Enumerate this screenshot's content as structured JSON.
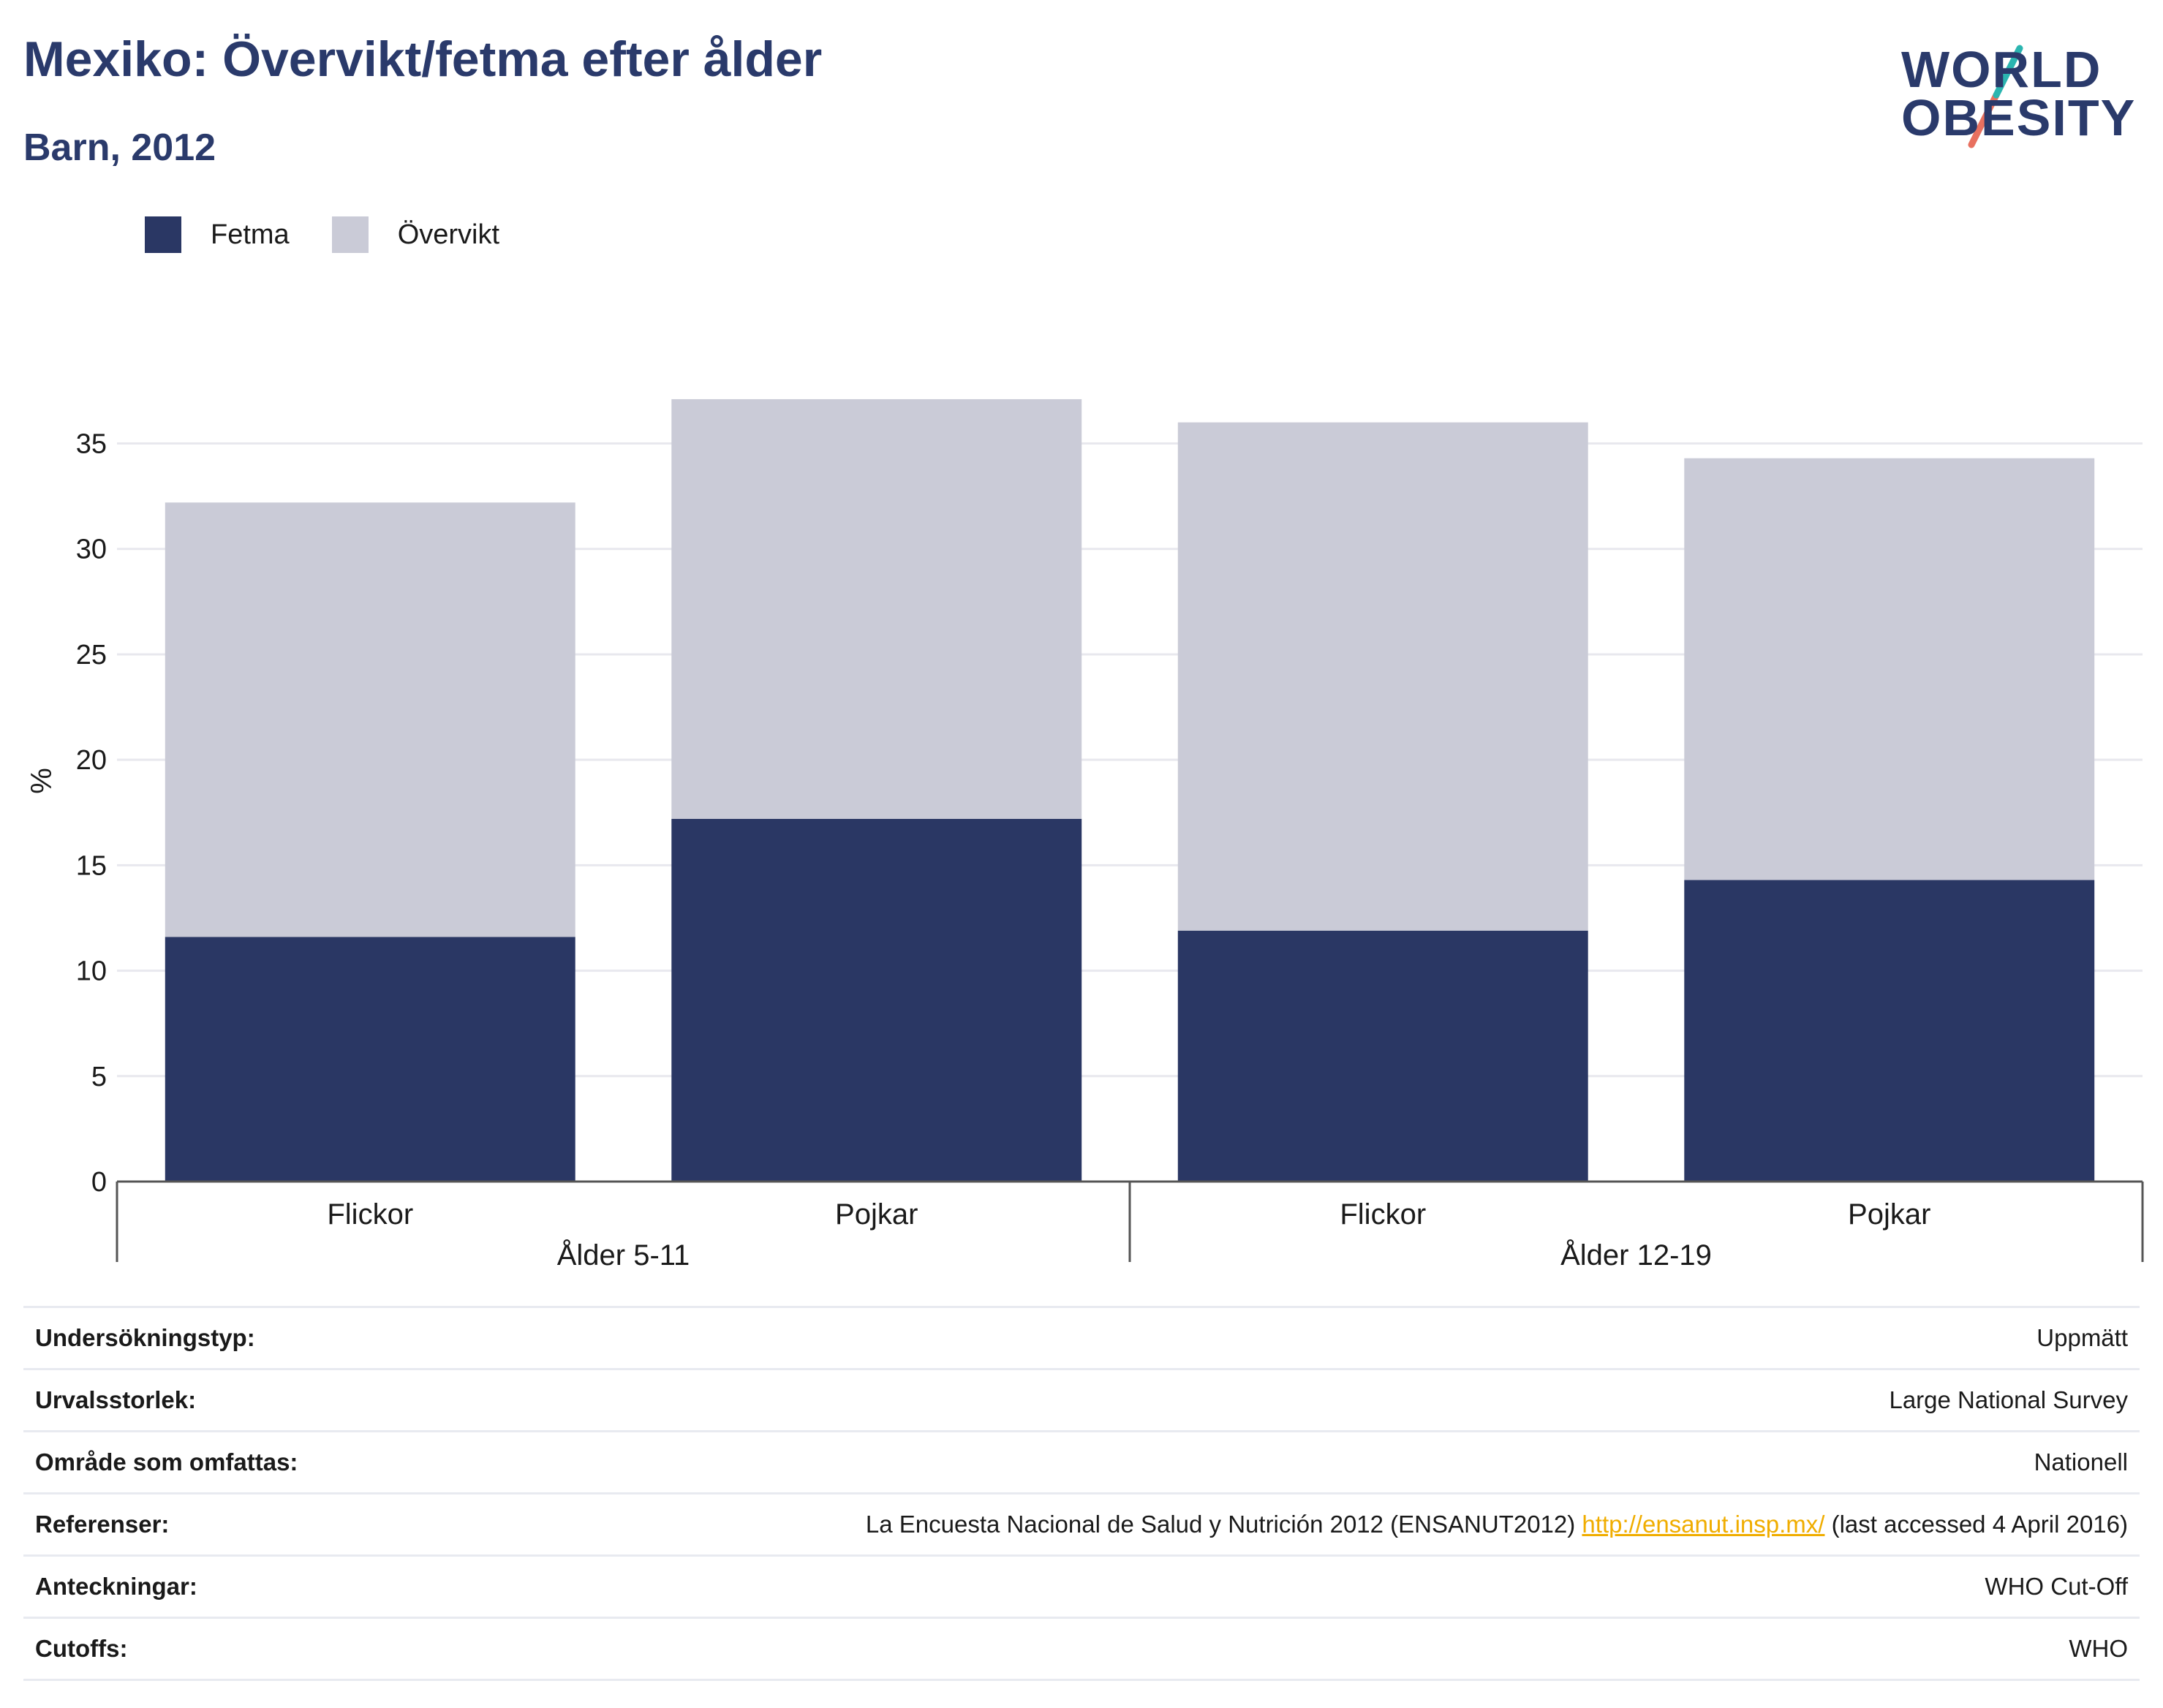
{
  "header": {
    "title": "Mexiko: Övervikt/fetma efter ålder",
    "subtitle": "Barn, 2012"
  },
  "logo": {
    "line1": "WORLD",
    "line2": "OBESITY",
    "accent_colors": [
      "#2bb5b0",
      "#e8705f"
    ]
  },
  "legend": [
    {
      "label": "Fetma",
      "color": "#2a3764"
    },
    {
      "label": "Övervikt",
      "color": "#cacbd7"
    }
  ],
  "chart_data": {
    "type": "bar",
    "stacked": true,
    "categories": [
      "Flickor",
      "Pojkar",
      "Flickor",
      "Pojkar"
    ],
    "groups": [
      {
        "label": "Ålder 5-11",
        "categories": [
          "Flickor",
          "Pojkar"
        ]
      },
      {
        "label": "Ålder 12-19",
        "categories": [
          "Flickor",
          "Pojkar"
        ]
      }
    ],
    "series": [
      {
        "name": "Fetma",
        "color": "#2a3764",
        "values": [
          11.6,
          17.2,
          11.9,
          14.3
        ]
      },
      {
        "name": "Övervikt",
        "color": "#cacbd7",
        "values": [
          20.6,
          19.9,
          24.1,
          20.0
        ]
      }
    ],
    "ylabel": "%",
    "ylim": [
      0,
      38
    ],
    "yticks": [
      0,
      5,
      10,
      15,
      20,
      25,
      30,
      35
    ],
    "grid": true,
    "legend_position": "top-left"
  },
  "metadata_table": [
    {
      "key": "Undersökningstyp:",
      "value": "Uppmätt"
    },
    {
      "key": "Urvalsstorlek:",
      "value": "Large National Survey"
    },
    {
      "key": "Område som omfattas:",
      "value": "Nationell"
    },
    {
      "key": "Referenser:",
      "value_prefix": "La Encuesta Nacional de Salud y Nutrición 2012 (ENSANUT2012)",
      "link": "http://ensanut.insp.mx/",
      "value_suffix": "(last accessed 4 April 2016)"
    },
    {
      "key": "Anteckningar:",
      "value": "WHO Cut-Off"
    },
    {
      "key": "Cutoffs:",
      "value": "WHO"
    }
  ]
}
